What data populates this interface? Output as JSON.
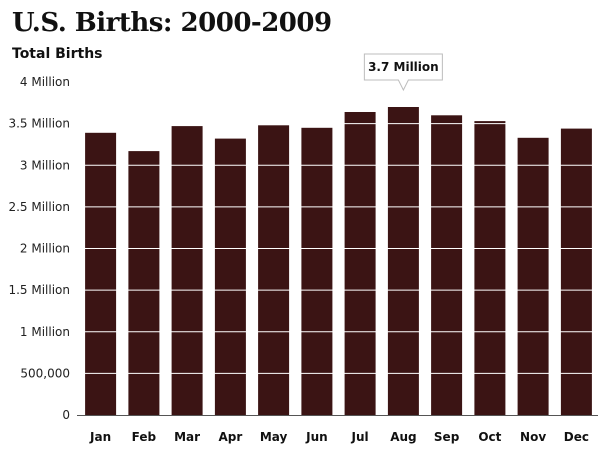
{
  "chart_data": {
    "type": "bar",
    "title": "U.S. Births: 2000-2009",
    "ylabel": "Total Births",
    "xlabel": "",
    "categories": [
      "Jan",
      "Feb",
      "Mar",
      "Apr",
      "May",
      "Jun",
      "Jul",
      "Aug",
      "Sep",
      "Oct",
      "Nov",
      "Dec"
    ],
    "values": [
      3390000,
      3170000,
      3470000,
      3320000,
      3480000,
      3450000,
      3640000,
      3700000,
      3600000,
      3530000,
      3330000,
      3440000
    ],
    "ylim": [
      0,
      4000000
    ],
    "yticks": [
      0,
      500000,
      1000000,
      1500000,
      2000000,
      2500000,
      3000000,
      3500000,
      4000000
    ],
    "ytick_labels": [
      "0",
      "500,000",
      "1 Million",
      "1.5 Million",
      "2 Million",
      "2.5 Million",
      "3 Million",
      "3.5 Million",
      "4 Million"
    ],
    "annotation": {
      "category": "Aug",
      "text": "3.7 Million"
    },
    "grid": true,
    "colors": {
      "bar": "#3b1414",
      "gridline": "#ffffff",
      "axis": "#555555"
    }
  }
}
